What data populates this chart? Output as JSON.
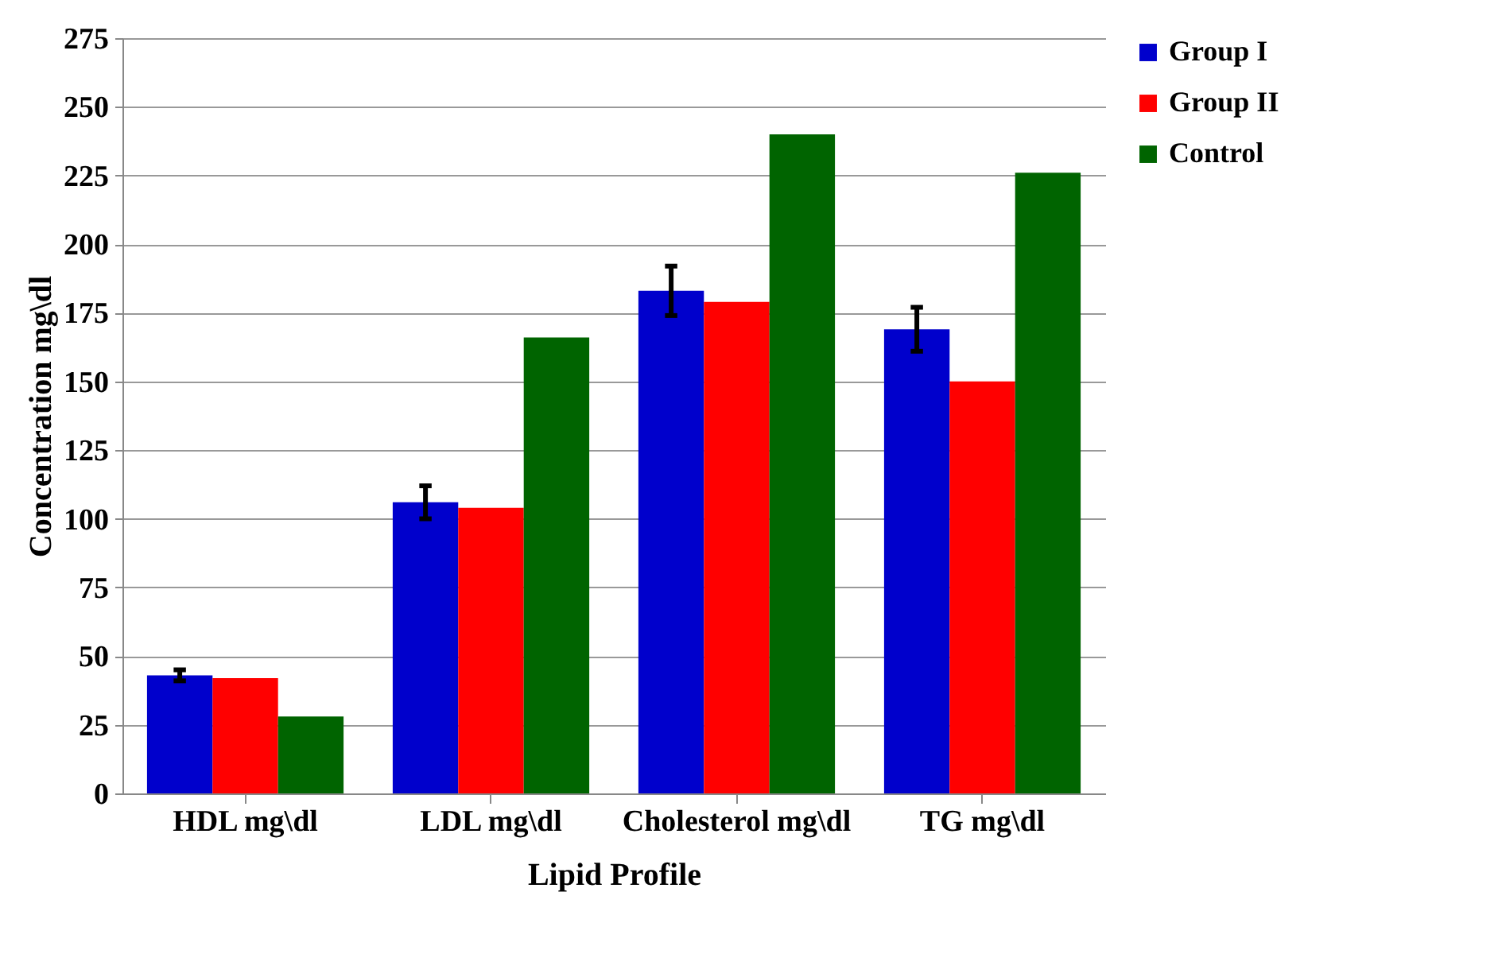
{
  "chart_data": {
    "type": "bar",
    "xlabel": "Lipid  Profile",
    "ylabel": "Concentration  mg\\dl",
    "categories": [
      "HDL  mg\\dl",
      "LDL  mg\\dl",
      "Cholesterol mg\\dl",
      "TG  mg\\dl"
    ],
    "series": [
      {
        "name": "Group I",
        "color": "#0000cc",
        "values": [
          43,
          106,
          183,
          169
        ],
        "errors": [
          2,
          6,
          9,
          8
        ]
      },
      {
        "name": "Group II",
        "color": "#ff0000",
        "values": [
          42,
          104,
          179,
          150
        ]
      },
      {
        "name": "Control",
        "color": "#006400",
        "values": [
          28,
          166,
          240,
          226
        ]
      }
    ],
    "ylim": [
      0,
      275
    ],
    "yticks": [
      0,
      25,
      50,
      75,
      100,
      125,
      150,
      175,
      200,
      225,
      250,
      275
    ],
    "grid": "y",
    "legend": "right"
  }
}
